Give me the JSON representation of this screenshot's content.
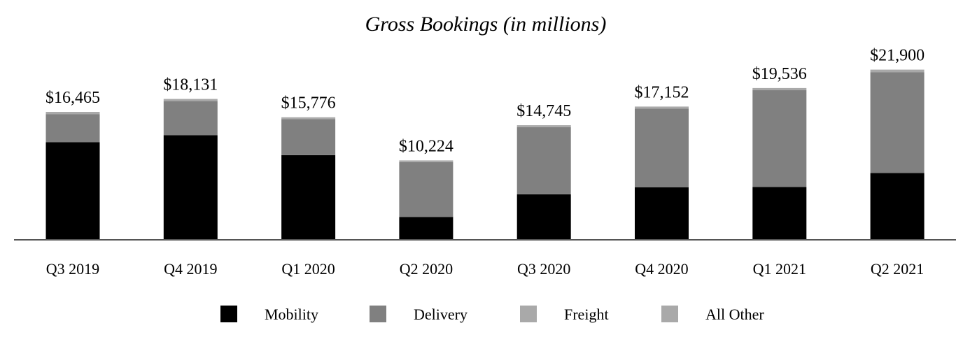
{
  "chart_data": {
    "type": "bar",
    "stacked": true,
    "title": "Gross Bookings (in millions)",
    "xlabel": "",
    "ylabel": "",
    "categories": [
      "Q3 2019",
      "Q4 2019",
      "Q1 2020",
      "Q2 2020",
      "Q3 2020",
      "Q4 2020",
      "Q1 2021",
      "Q2 2021"
    ],
    "totals": [
      "$16,465",
      "$18,131",
      "$15,776",
      "$10,224",
      "$14,745",
      "$17,152",
      "$19,536",
      "$21,900"
    ],
    "total_values": [
      16465,
      18131,
      15776,
      10224,
      14745,
      17152,
      19536,
      21900
    ],
    "series": [
      {
        "name": "Mobility",
        "color": "#000000",
        "values": [
          12550,
          13450,
          10900,
          2950,
          5850,
          6750,
          6800,
          8600
        ]
      },
      {
        "name": "Delivery",
        "color": "#808080",
        "values": [
          3600,
          4400,
          4650,
          7050,
          8650,
          10150,
          12450,
          12950
        ]
      },
      {
        "name": "Freight",
        "color": "#a9a9a9",
        "values": [
          315,
          281,
          226,
          224,
          245,
          252,
          286,
          350
        ]
      },
      {
        "name": "All Other",
        "color": "#a9a9a9",
        "values": [
          0,
          0,
          0,
          0,
          0,
          0,
          0,
          0
        ]
      }
    ],
    "ylim": [
      0,
      25000
    ],
    "grid": false,
    "legend": "bottom"
  }
}
